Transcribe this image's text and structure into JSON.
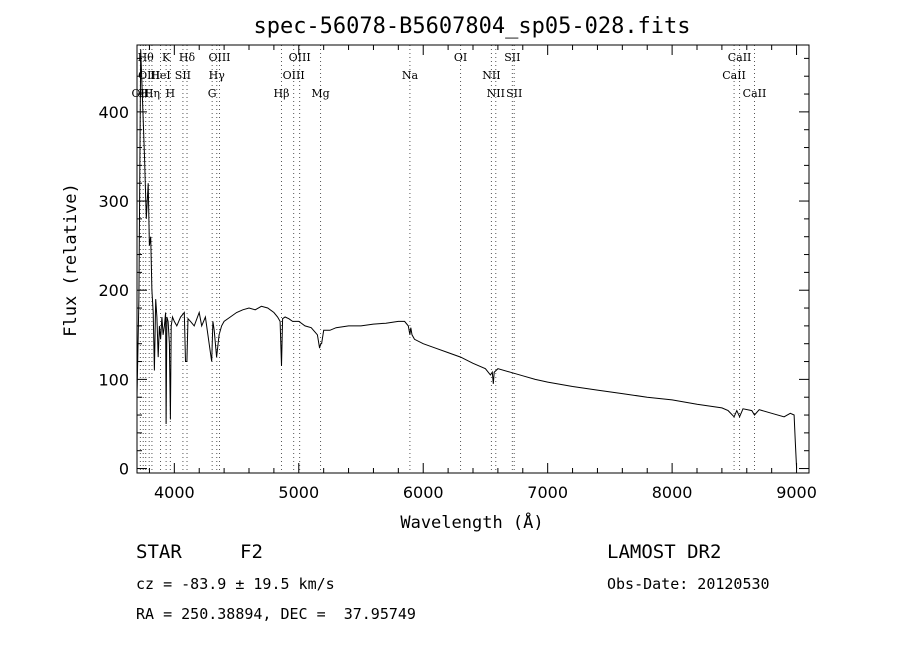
{
  "chart_data": {
    "type": "line",
    "title": "spec-56078-B5607804_sp05-028.fits",
    "xlabel": "Wavelength (Å)",
    "ylabel": "Flux (relative)",
    "xlim": [
      3700,
      9100
    ],
    "ylim": [
      -5,
      475
    ],
    "xticks": [
      4000,
      5000,
      6000,
      7000,
      8000,
      9000
    ],
    "yticks": [
      0,
      100,
      200,
      300,
      400
    ],
    "grid": false,
    "line_color": "#000000",
    "series": [
      {
        "x": [
          3700,
          3715,
          3730,
          3745,
          3760,
          3775,
          3790,
          3800,
          3810,
          3820,
          3830,
          3840,
          3850,
          3860,
          3870,
          3880,
          3890,
          3900,
          3910,
          3920,
          3930,
          3934,
          3940,
          3950,
          3960,
          3968,
          3975,
          3985,
          4000,
          4020,
          4050,
          4080,
          4090,
          4101,
          4110,
          4130,
          4160,
          4200,
          4220,
          4250,
          4270,
          4290,
          4300,
          4310,
          4320,
          4340,
          4360,
          4380,
          4400,
          4450,
          4500,
          4550,
          4600,
          4650,
          4700,
          4750,
          4800,
          4830,
          4850,
          4861,
          4870,
          4890,
          4920,
          4950,
          5000,
          5050,
          5100,
          5150,
          5167,
          5175,
          5183,
          5200,
          5250,
          5300,
          5400,
          5500,
          5600,
          5700,
          5800,
          5850,
          5880,
          5893,
          5900,
          5910,
          5930,
          6000,
          6100,
          6200,
          6300,
          6400,
          6500,
          6540,
          6555,
          6563,
          6570,
          6600,
          6700,
          6800,
          6900,
          7000,
          7200,
          7400,
          7600,
          7800,
          8000,
          8200,
          8400,
          8450,
          8498,
          8520,
          8542,
          8570,
          8640,
          8662,
          8700,
          8800,
          8900,
          8950,
          8980,
          8990,
          9000
        ],
        "values": [
          80,
          190,
          470,
          410,
          350,
          280,
          320,
          250,
          260,
          200,
          175,
          110,
          190,
          170,
          125,
          160,
          145,
          170,
          150,
          160,
          175,
          50,
          170,
          165,
          140,
          55,
          160,
          170,
          165,
          160,
          170,
          175,
          120,
          120,
          168,
          165,
          160,
          175,
          160,
          170,
          150,
          130,
          120,
          165,
          155,
          125,
          150,
          160,
          165,
          170,
          175,
          178,
          180,
          178,
          182,
          180,
          175,
          170,
          165,
          115,
          168,
          170,
          168,
          165,
          165,
          160,
          158,
          150,
          135,
          140,
          140,
          155,
          155,
          158,
          160,
          160,
          162,
          163,
          165,
          165,
          160,
          150,
          158,
          150,
          145,
          140,
          135,
          130,
          125,
          118,
          112,
          105,
          108,
          95,
          108,
          112,
          108,
          104,
          100,
          97,
          92,
          88,
          84,
          80,
          77,
          72,
          68,
          65,
          58,
          65,
          58,
          67,
          65,
          60,
          66,
          62,
          58,
          62,
          60,
          30,
          0
        ]
      }
    ],
    "lines": [
      {
        "wl": 3727,
        "label": "OII",
        "row": 2
      },
      {
        "wl": 3750,
        "label": "H",
        "row": 2
      },
      {
        "wl": 3770,
        "label": "Hθ",
        "row": 0
      },
      {
        "wl": 3798,
        "label": "OIII",
        "row": 1
      },
      {
        "wl": 3820,
        "label": "Hη",
        "row": 2
      },
      {
        "wl": 3889,
        "label": "HeI",
        "row": 1
      },
      {
        "wl": 3934,
        "label": "K",
        "row": 0
      },
      {
        "wl": 3968,
        "label": "H",
        "row": 2
      },
      {
        "wl": 4069,
        "label": "SII",
        "row": 1
      },
      {
        "wl": 4102,
        "label": "Hδ",
        "row": 0
      },
      {
        "wl": 4304,
        "label": "G",
        "row": 2
      },
      {
        "wl": 4341,
        "label": "Hγ",
        "row": 1
      },
      {
        "wl": 4363,
        "label": "OIII",
        "row": 0
      },
      {
        "wl": 4861,
        "label": "Hβ",
        "row": 2
      },
      {
        "wl": 4959,
        "label": "OIII",
        "row": 1
      },
      {
        "wl": 5007,
        "label": "OIII",
        "row": 0
      },
      {
        "wl": 5175,
        "label": "Mg",
        "row": 2
      },
      {
        "wl": 5893,
        "label": "Na",
        "row": 1
      },
      {
        "wl": 6300,
        "label": "OI",
        "row": 0
      },
      {
        "wl": 6548,
        "label": "NII",
        "row": 1
      },
      {
        "wl": 6583,
        "label": "NII",
        "row": 2
      },
      {
        "wl": 6716,
        "label": "SII",
        "row": 0
      },
      {
        "wl": 6731,
        "label": "SII",
        "row": 2
      },
      {
        "wl": 8498,
        "label": "CaII",
        "row": 1
      },
      {
        "wl": 8542,
        "label": "CaII",
        "row": 0
      },
      {
        "wl": 8662,
        "label": "CaII",
        "row": 2
      }
    ]
  },
  "info": {
    "object_class": "STAR",
    "subclass": "F2",
    "survey": "LAMOST DR2",
    "redshift": "cz = -83.9 ± 19.5 km/s",
    "obs_date": "Obs-Date: 20120530",
    "coords": "RA = 250.38894, DEC =  37.95749"
  }
}
